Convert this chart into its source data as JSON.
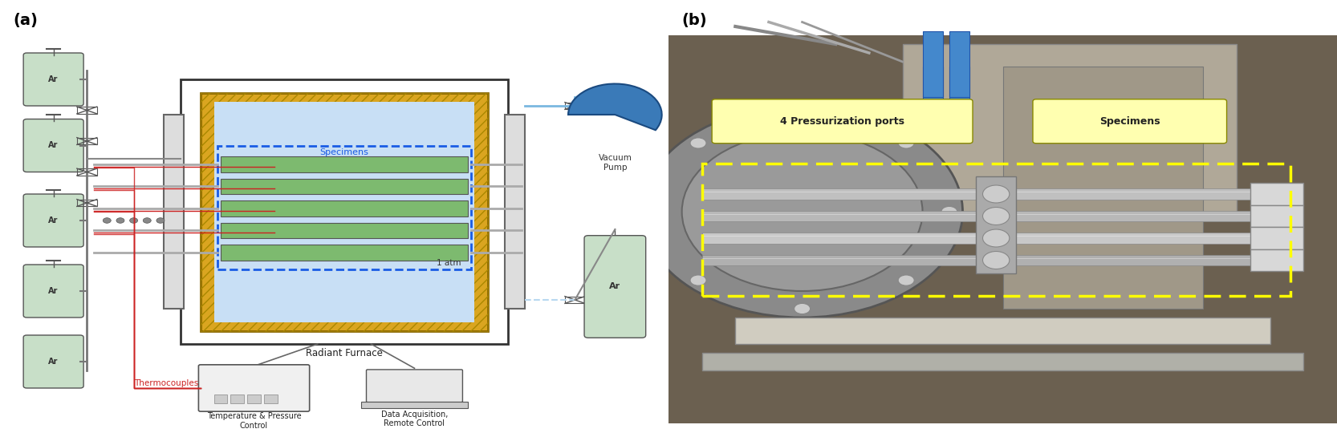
{
  "fig_width": 16.66,
  "fig_height": 5.5,
  "panel_a_label": "(a)",
  "panel_b_label": "(b)",
  "label_fontsize": 14,
  "label_fontweight": "bold",
  "bg_color": "#ffffff",
  "schematic": {
    "furnace_box_color": "#f5f5f5",
    "furnace_border_color": "#333333",
    "heater_color": "#DAA520",
    "chamber_fill": "#c8dff5",
    "specimen_fill": "#7dba6f",
    "specimen_border": "#555555",
    "dashed_box_color": "#1a5ce5",
    "pipe_color_ar": "#aaaaaa",
    "pipe_color_thermocouple": "#cc2222",
    "cylinder_fill": "#c8dfc8",
    "vacuum_pump_fill": "#3a7ab8",
    "text_specimens": "Specimens",
    "text_1atm": "1 atm",
    "text_furnace": "Radiant Furnace",
    "text_vacuum": "Vacuum\nPump",
    "text_ar_right": "Ar",
    "text_thermocouple": "Thermocouples",
    "text_temp_control": "Temperature & Pressure\nControl",
    "text_data": "Data Acquisition,\nRemote Control"
  },
  "photo": {
    "label1": "4 Pressurization ports",
    "label2": "Specimens",
    "label1_bg": "#ffffb0",
    "label2_bg": "#ffffb0",
    "dashed_color": "#ffff00",
    "photo_bg": "#7a6a50"
  }
}
